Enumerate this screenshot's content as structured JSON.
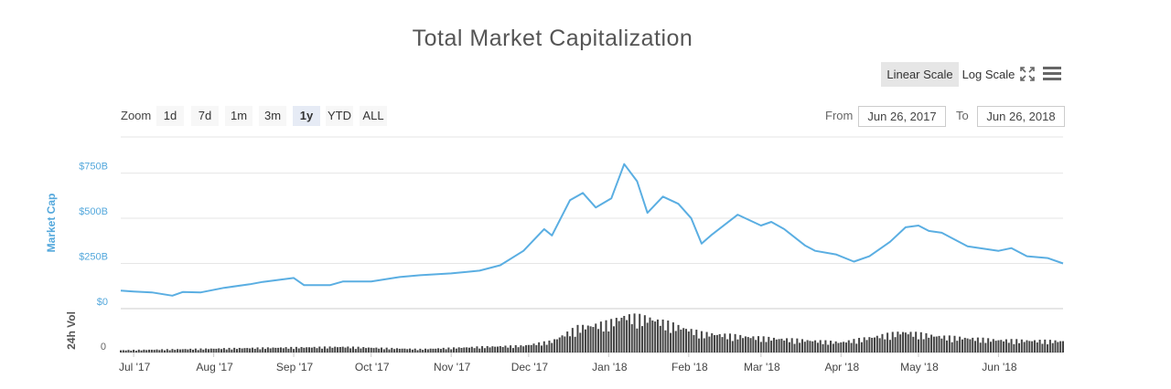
{
  "title": "Total Market Capitalization",
  "controls": {
    "linear_scale": "Linear Scale",
    "log_scale": "Log Scale",
    "zoom_label": "Zoom",
    "zoom_options": [
      "1d",
      "7d",
      "1m",
      "3m",
      "1y",
      "YTD",
      "ALL"
    ],
    "zoom_selected": "1y",
    "from_label": "From",
    "from_value": "Jun 26, 2017",
    "to_label": "To",
    "to_value": "Jun 26, 2018",
    "icons": [
      "fullscreen-icon",
      "menu-icon"
    ]
  },
  "colors": {
    "line": "#5aaee2",
    "bars": "#444444",
    "axis_label": "#54a8dc"
  },
  "chart_data": [
    {
      "type": "line",
      "title": "Total Market Capitalization",
      "ylabel": "Market Cap",
      "yticks": [
        "$0",
        "$250B",
        "$500B",
        "$750B"
      ],
      "ylim": [
        0,
        950
      ],
      "xlim": [
        "2017-06-26",
        "2018-06-26"
      ],
      "xticks": [
        "Jul '17",
        "Aug '17",
        "Sep '17",
        "Oct '17",
        "Nov '17",
        "Dec '17",
        "Jan '18",
        "Feb '18",
        "Mar '18",
        "Apr '18",
        "May '18",
        "Jun '18"
      ],
      "grid": true,
      "series": [
        {
          "x": [
            "2017-06-26",
            "2017-07-01",
            "2017-07-08",
            "2017-07-16",
            "2017-07-20",
            "2017-07-27",
            "2017-08-05",
            "2017-08-15",
            "2017-08-20",
            "2017-09-01",
            "2017-09-05",
            "2017-09-15",
            "2017-09-20",
            "2017-10-01",
            "2017-10-12",
            "2017-10-20",
            "2017-11-01",
            "2017-11-12",
            "2017-11-20",
            "2017-11-29",
            "2017-12-07",
            "2017-12-10",
            "2017-12-17",
            "2017-12-22",
            "2017-12-27",
            "2018-01-02",
            "2018-01-07",
            "2018-01-12",
            "2018-01-16",
            "2018-01-18",
            "2018-01-22",
            "2018-01-28",
            "2018-02-02",
            "2018-02-06",
            "2018-02-10",
            "2018-02-20",
            "2018-03-01",
            "2018-03-05",
            "2018-03-10",
            "2018-03-18",
            "2018-03-22",
            "2018-03-30",
            "2018-04-06",
            "2018-04-12",
            "2018-04-20",
            "2018-04-26",
            "2018-05-01",
            "2018-05-05",
            "2018-05-10",
            "2018-05-20",
            "2018-06-01",
            "2018-06-06",
            "2018-06-12",
            "2018-06-20",
            "2018-06-26"
          ],
          "values": [
            100,
            95,
            90,
            72,
            92,
            90,
            115,
            135,
            148,
            170,
            130,
            130,
            150,
            150,
            175,
            185,
            195,
            210,
            240,
            320,
            440,
            405,
            600,
            640,
            560,
            610,
            800,
            705,
            530,
            560,
            620,
            580,
            500,
            360,
            410,
            520,
            460,
            480,
            440,
            350,
            320,
            300,
            260,
            290,
            370,
            450,
            460,
            430,
            420,
            345,
            320,
            335,
            290,
            280,
            250
          ]
        }
      ]
    },
    {
      "type": "bar",
      "ylabel": "24h Vol",
      "yticks": [
        "0"
      ],
      "xlim": [
        "2017-06-26",
        "2018-06-26"
      ],
      "x": [
        "2017-06-26",
        "2017-08-15",
        "2017-09-20",
        "2017-10-20",
        "2017-11-12",
        "2017-11-29",
        "2017-12-10",
        "2017-12-20",
        "2018-01-01",
        "2018-01-07",
        "2018-01-17",
        "2018-02-06",
        "2018-03-01",
        "2018-04-01",
        "2018-04-25",
        "2018-05-10",
        "2018-06-01",
        "2018-06-26"
      ],
      "values": [
        2,
        4,
        5,
        3,
        5,
        6,
        10,
        22,
        26,
        32,
        30,
        17,
        13,
        9,
        18,
        14,
        11,
        10
      ]
    }
  ]
}
